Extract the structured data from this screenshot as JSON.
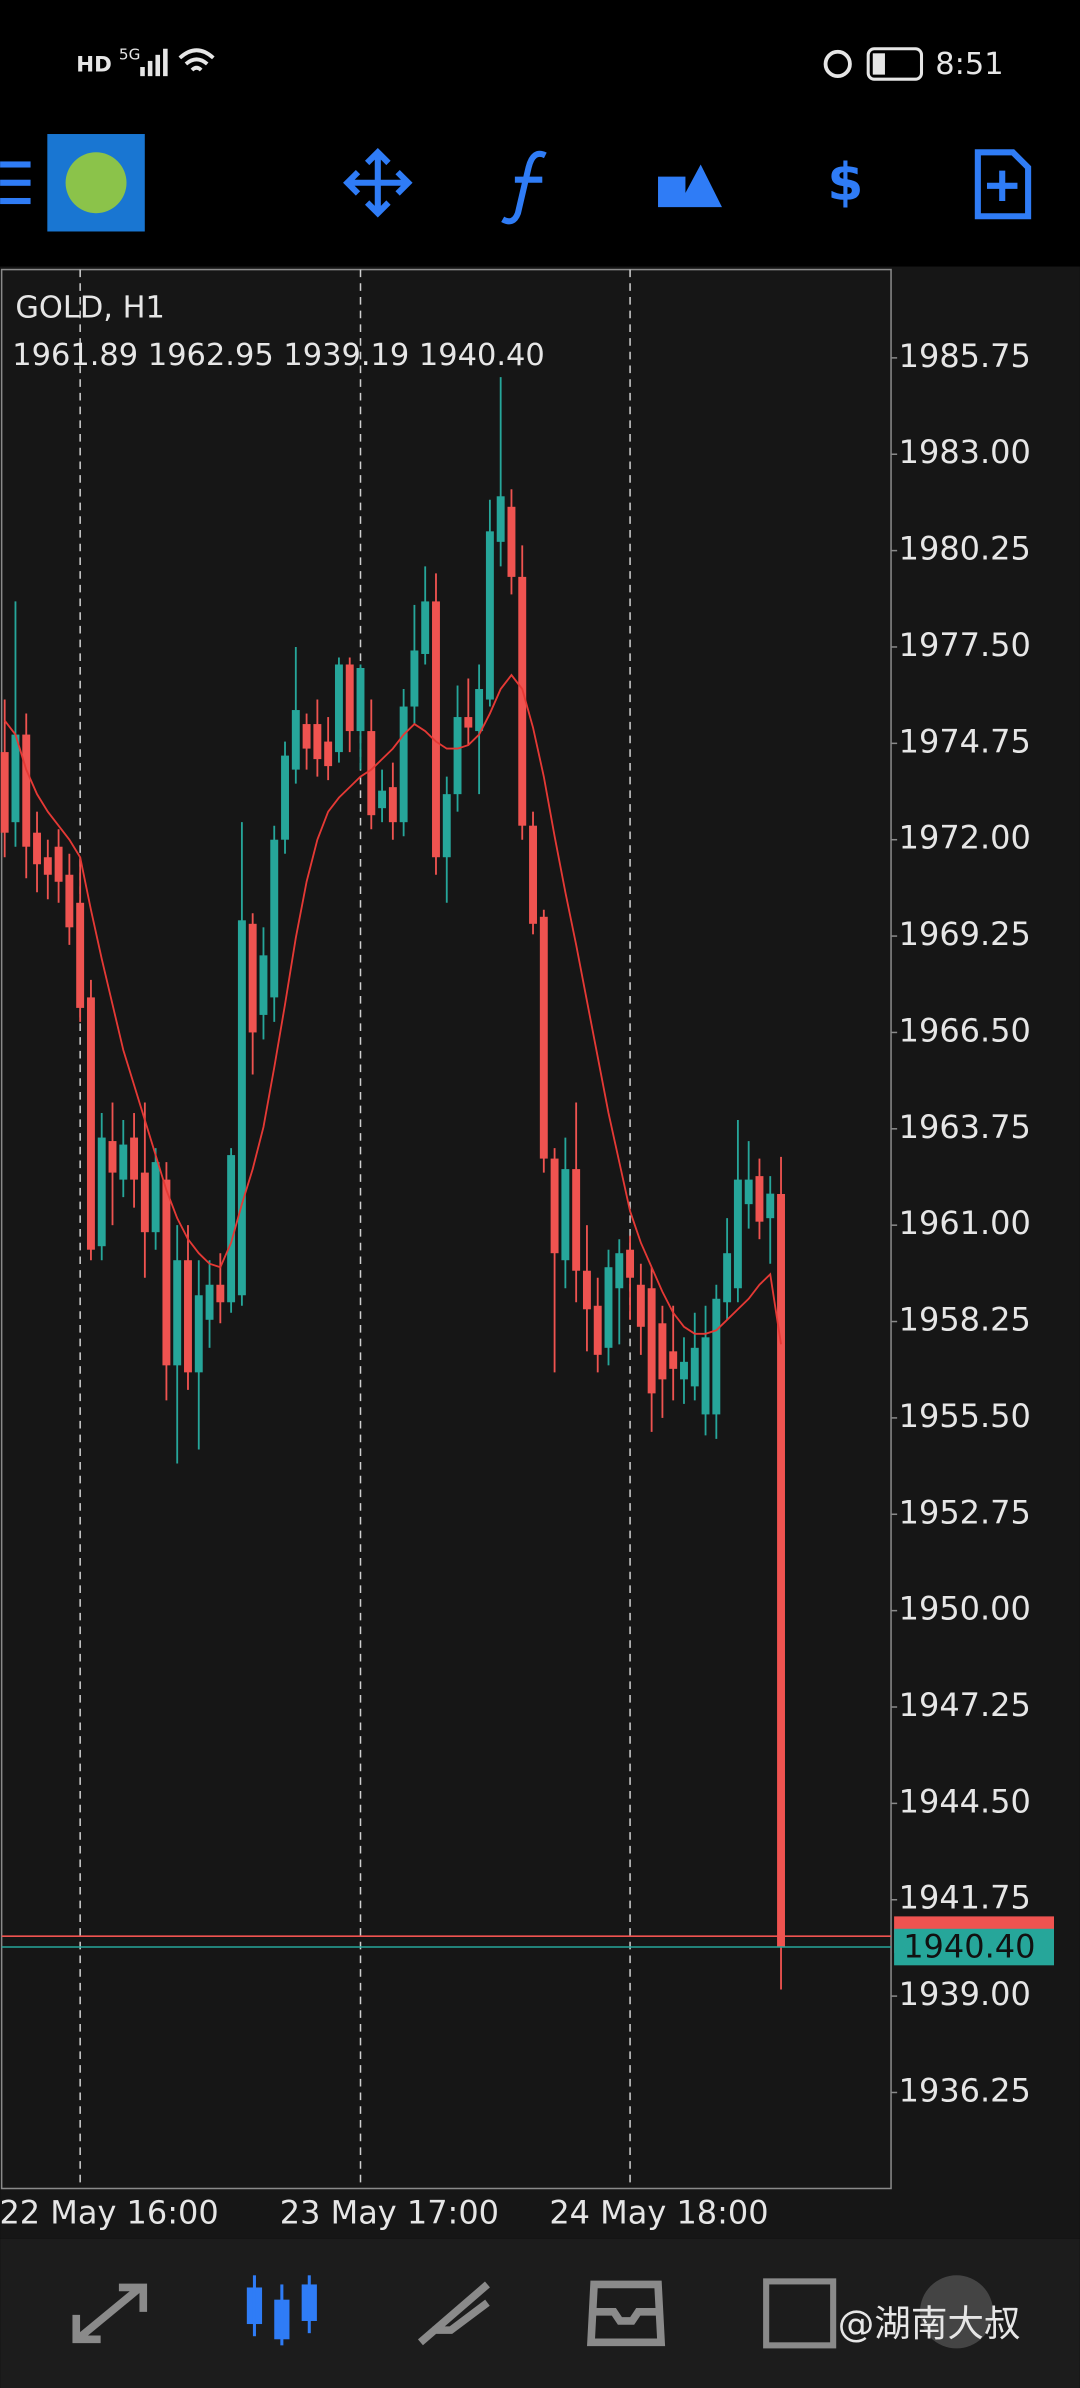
{
  "status_bar": {
    "left": "HD",
    "network": "5G",
    "time": "8:51"
  },
  "chart_data": {
    "type": "candlestick",
    "symbol": "GOLD, H1",
    "ohlc_text": "1961.89 1962.95 1939.19 1940.40",
    "categories": [
      null,
      null,
      null,
      null,
      null,
      null,
      null,
      "22 May 16:00",
      null,
      null,
      null,
      null,
      null,
      null,
      null,
      null,
      null,
      null,
      null,
      null,
      null,
      null,
      null,
      null,
      null,
      null,
      null,
      null,
      null,
      null,
      null,
      null,
      null,
      "23 May 17:00",
      null,
      null,
      null,
      null,
      null,
      null,
      null,
      null,
      null,
      null,
      null,
      null,
      null,
      null,
      null,
      null,
      null,
      null,
      null,
      null,
      null,
      null,
      null,
      null,
      "24 May 18:00",
      null,
      null,
      null,
      null,
      null,
      null,
      null,
      null,
      null,
      null,
      null,
      null,
      null,
      null
    ],
    "open": [
      1974.5,
      1972.5,
      1975.0,
      1972.2,
      1971.5,
      1971.8,
      1971.0,
      1970.2,
      1967.5,
      1960.4,
      1963.4,
      1962.3,
      1963.5,
      1962.5,
      1960.8,
      1962.3,
      1957.0,
      1960.0,
      1956.8,
      1958.3,
      1959.3,
      1958.8,
      1959.0,
      1969.6,
      1967.0,
      1967.5,
      1972.0,
      1974.0,
      1975.3,
      1975.3,
      1974.8,
      1974.5,
      1977.0,
      1975.1,
      1975.1,
      1972.9,
      1973.5,
      1972.5,
      1975.8,
      1977.3,
      1978.8,
      1971.5,
      1973.3,
      1975.5,
      1975.1,
      1976.0,
      1980.5,
      1981.5,
      1979.5,
      1972.4,
      1969.8,
      1962.9,
      1960.0,
      1962.6,
      1959.7,
      1958.7,
      1957.5,
      1959.2,
      1960.3,
      1959.3,
      1959.2,
      1958.2,
      1957.4,
      1956.6,
      1956.4,
      1955.6,
      1955.6,
      1958.8,
      1959.2,
      1961.6,
      1962.4,
      1961.2,
      1961.89
    ],
    "high": [
      1976.0,
      1978.8,
      1975.6,
      1972.8,
      1972.0,
      1972.3,
      1971.6,
      1971.5,
      1968.0,
      1964.2,
      1964.5,
      1964.0,
      1964.2,
      1964.5,
      1963.2,
      1962.8,
      1961.0,
      1961.0,
      1960.0,
      1960.0,
      1960.2,
      1963.2,
      1972.5,
      1969.9,
      1969.5,
      1972.4,
      1974.8,
      1977.5,
      1975.6,
      1976.0,
      1975.5,
      1977.2,
      1977.2,
      1977.0,
      1976.0,
      1974.0,
      1974.2,
      1976.3,
      1978.7,
      1979.8,
      1979.6,
      1973.8,
      1976.4,
      1976.6,
      1977.0,
      1981.7,
      1985.2,
      1982.0,
      1980.4,
      1972.8,
      1970.0,
      1963.2,
      1963.5,
      1964.5,
      1961.0,
      1959.5,
      1960.3,
      1960.6,
      1960.7,
      1959.9,
      1959.8,
      1958.7,
      1958.7,
      1957.8,
      1958.5,
      1958.7,
      1959.3,
      1961.2,
      1964.0,
      1963.4,
      1962.9,
      1962.4,
      1962.95
    ],
    "low": [
      1971.5,
      1971.8,
      1970.9,
      1970.5,
      1970.3,
      1970.2,
      1969.0,
      1966.8,
      1960.0,
      1960.0,
      1961.0,
      1961.8,
      1961.5,
      1959.5,
      1960.3,
      1956.0,
      1954.2,
      1956.3,
      1954.6,
      1957.5,
      1958.2,
      1958.5,
      1958.7,
      1965.3,
      1966.3,
      1966.8,
      1971.6,
      1973.6,
      1974.0,
      1973.8,
      1973.7,
      1974.2,
      1974.5,
      1974.0,
      1972.3,
      1972.5,
      1972.0,
      1972.1,
      1975.3,
      1977.0,
      1971.0,
      1970.2,
      1972.8,
      1974.7,
      1973.3,
      1975.8,
      1979.8,
      1979.0,
      1972.0,
      1969.3,
      1962.5,
      1956.8,
      1959.2,
      1958.8,
      1957.4,
      1956.8,
      1957.0,
      1957.6,
      1958.3,
      1957.3,
      1955.1,
      1955.5,
      1956.0,
      1955.9,
      1956.0,
      1955.0,
      1954.9,
      1958.3,
      1958.8,
      1960.9,
      1960.6,
      1959.9,
      1939.19
    ],
    "close": [
      1972.2,
      1975.0,
      1971.8,
      1971.3,
      1971.0,
      1970.8,
      1969.5,
      1967.2,
      1960.3,
      1963.5,
      1962.5,
      1963.3,
      1962.3,
      1960.8,
      1962.8,
      1957.0,
      1960.0,
      1956.8,
      1959.0,
      1959.3,
      1958.8,
      1963.0,
      1969.7,
      1966.5,
      1968.7,
      1972.0,
      1974.4,
      1975.7,
      1974.6,
      1974.3,
      1974.1,
      1977.0,
      1975.1,
      1976.9,
      1972.7,
      1973.4,
      1972.5,
      1975.8,
      1977.4,
      1978.8,
      1971.5,
      1973.3,
      1975.5,
      1975.2,
      1976.3,
      1980.8,
      1981.8,
      1979.5,
      1972.4,
      1969.6,
      1962.9,
      1960.2,
      1962.6,
      1959.7,
      1958.6,
      1957.3,
      1959.8,
      1960.2,
      1959.5,
      1958.1,
      1956.2,
      1956.6,
      1956.9,
      1957.1,
      1957.5,
      1957.8,
      1958.9,
      1960.2,
      1962.3,
      1962.3,
      1961.1,
      1961.9,
      1940.4
    ],
    "up_color": "#26a69a",
    "down_color": "#ef5350",
    "ma": {
      "color": "#e53935",
      "values": [
        1975.4,
        1975.0,
        1974.0,
        1973.3,
        1972.8,
        1972.4,
        1972.0,
        1971.5,
        1970.0,
        1968.6,
        1967.3,
        1966.0,
        1965.0,
        1964.0,
        1963.0,
        1962.0,
        1961.2,
        1960.6,
        1960.2,
        1959.9,
        1959.8,
        1960.5,
        1961.6,
        1962.6,
        1963.8,
        1965.5,
        1967.3,
        1969.2,
        1970.8,
        1972.0,
        1972.8,
        1973.2,
        1973.5,
        1973.8,
        1974.0,
        1974.3,
        1974.6,
        1975.0,
        1975.3,
        1975.1,
        1974.8,
        1974.6,
        1974.6,
        1974.7,
        1975.0,
        1975.6,
        1976.3,
        1976.7,
        1976.3,
        1975.2,
        1973.8,
        1972.1,
        1970.5,
        1969.0,
        1967.4,
        1965.8,
        1964.2,
        1962.8,
        1961.4,
        1960.5,
        1959.8,
        1959.1,
        1958.5,
        1958.1,
        1957.9,
        1957.9,
        1958.0,
        1958.3,
        1958.6,
        1958.9,
        1959.3,
        1959.6,
        1957.6
      ]
    },
    "bid": {
      "value": 1940.4,
      "label": "1940.40",
      "color": "#26a69a"
    },
    "ask": {
      "value": 1940.71,
      "color": "#ef5350"
    },
    "ylim": [
      1933.51,
      1988.27
    ],
    "yticks": [
      1985.75,
      {
        "value": 1983,
        "label": "1983.00"
      },
      1980.25,
      {
        "value": 1977.5,
        "label": "1977.50"
      },
      1974.75,
      {
        "value": 1972,
        "label": "1972.00"
      },
      1969.25,
      {
        "value": 1966.5,
        "label": "1966.50"
      },
      1963.75,
      {
        "value": 1961,
        "label": "1961.00"
      },
      1958.25,
      {
        "value": 1955.5,
        "label": "1955.50"
      },
      1952.75,
      {
        "value": 1950,
        "label": "1950.00"
      },
      1947.25,
      {
        "value": 1944.5,
        "label": "1944.50"
      },
      1941.75,
      {
        "value": 1939,
        "label": "1939.00"
      },
      1936.25
    ],
    "grid": false
  },
  "watermark": "@湖南大叔"
}
